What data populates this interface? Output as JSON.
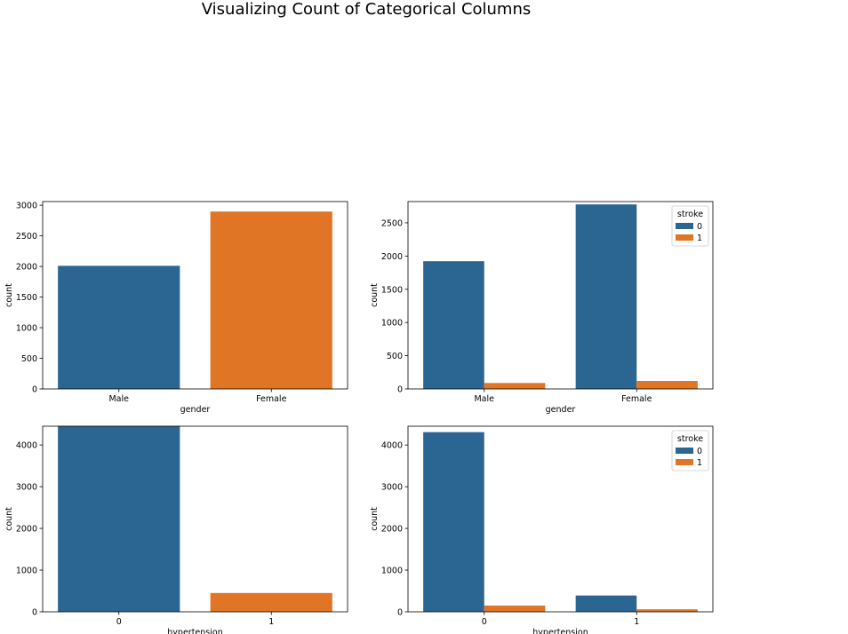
{
  "suptitle": "Visualizing Count of Categorical Columns",
  "colors": {
    "c0": "#2b6693",
    "c1": "#e07525"
  },
  "chart_data": [
    {
      "type": "bar",
      "categories": [
        "Male",
        "Female"
      ],
      "values": [
        2011,
        2897
      ],
      "xlabel": "gender",
      "ylabel": "count",
      "ylim": [
        0,
        3060
      ],
      "yticks": [
        0,
        500,
        1000,
        1500,
        2000,
        2500,
        3000
      ],
      "grid": false
    },
    {
      "type": "bar",
      "categories": [
        "Male",
        "Female"
      ],
      "series": [
        {
          "name": "0",
          "values": [
            1922,
            2777
          ]
        },
        {
          "name": "1",
          "values": [
            89,
            120
          ]
        }
      ],
      "legend_title": "stroke",
      "legend_position": "top-right",
      "xlabel": "gender",
      "ylabel": "count",
      "ylim": [
        0,
        2820
      ],
      "yticks": [
        0,
        500,
        1000,
        1500,
        2000,
        2500
      ],
      "grid": false
    },
    {
      "type": "bar",
      "categories": [
        "0",
        "1"
      ],
      "values": [
        4457,
        451
      ],
      "xlabel": "hypertension",
      "ylabel": "count",
      "ylim": [
        0,
        4450
      ],
      "yticks": [
        0,
        1000,
        2000,
        3000,
        4000
      ],
      "grid": false
    },
    {
      "type": "bar",
      "categories": [
        "0",
        "1"
      ],
      "series": [
        {
          "name": "0",
          "values": [
            4308,
            391
          ]
        },
        {
          "name": "1",
          "values": [
            149,
            60
          ]
        }
      ],
      "legend_title": "stroke",
      "legend_position": "top-right",
      "xlabel": "hypertension",
      "ylabel": "count",
      "ylim": [
        0,
        4450
      ],
      "yticks": [
        0,
        1000,
        2000,
        3000,
        4000
      ],
      "grid": false
    }
  ]
}
